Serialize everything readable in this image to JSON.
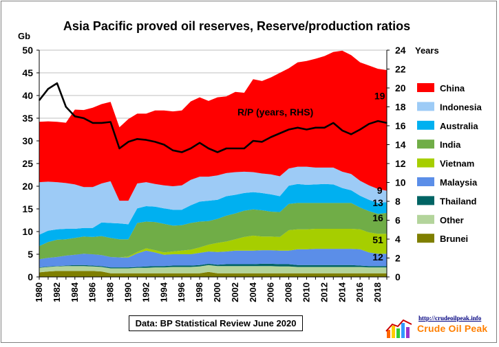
{
  "chart_data": {
    "type": "area",
    "stacked": true,
    "title": "Asia Pacific proved oil reserves, Reserve/production  ratios",
    "ylabel_left": "Gb",
    "ylabel_right": "Years",
    "ylim_left": [
      0,
      50
    ],
    "ylim_right": [
      0,
      24
    ],
    "yticks_left": [
      0,
      5,
      10,
      15,
      20,
      25,
      30,
      35,
      40,
      45,
      50
    ],
    "yticks_right": [
      0,
      2,
      4,
      6,
      8,
      10,
      12,
      14,
      16,
      18,
      20,
      22,
      24
    ],
    "x": [
      1980,
      1981,
      1982,
      1983,
      1984,
      1985,
      1986,
      1987,
      1988,
      1989,
      1990,
      1991,
      1992,
      1993,
      1994,
      1995,
      1996,
      1997,
      1998,
      1999,
      2000,
      2001,
      2002,
      2003,
      2004,
      2005,
      2006,
      2007,
      2008,
      2009,
      2010,
      2011,
      2012,
      2013,
      2014,
      2015,
      2016,
      2017,
      2018,
      2019
    ],
    "xticks": [
      1980,
      1982,
      1984,
      1986,
      1988,
      1990,
      1992,
      1994,
      1996,
      1998,
      2000,
      2002,
      2004,
      2006,
      2008,
      2010,
      2012,
      2014,
      2016,
      2018
    ],
    "grid": true,
    "legend_position": "right",
    "series": [
      {
        "name": "Brunei",
        "color": "#7f7f00",
        "values": [
          1.0,
          1.2,
          1.3,
          1.3,
          1.3,
          1.3,
          1.3,
          1.2,
          0.8,
          0.8,
          0.8,
          0.8,
          0.8,
          0.8,
          0.8,
          0.8,
          0.8,
          0.8,
          0.8,
          1.1,
          0.8,
          0.8,
          0.8,
          0.8,
          0.8,
          0.8,
          0.8,
          0.8,
          0.8,
          0.8,
          0.8,
          0.8,
          0.8,
          0.8,
          0.8,
          0.8,
          0.8,
          0.8,
          0.8,
          0.8
        ]
      },
      {
        "name": "Other",
        "color": "#b3d49b",
        "values": [
          1.0,
          1.0,
          1.0,
          1.1,
          1.1,
          1.1,
          1.0,
          1.0,
          1.1,
          1.1,
          1.1,
          1.2,
          1.2,
          1.3,
          1.3,
          1.4,
          1.4,
          1.4,
          1.5,
          1.5,
          1.6,
          1.6,
          1.6,
          1.6,
          1.6,
          1.6,
          1.6,
          1.5,
          1.5,
          1.4,
          1.4,
          1.4,
          1.4,
          1.4,
          1.4,
          1.4,
          1.4,
          1.3,
          1.3,
          1.3
        ]
      },
      {
        "name": "Thailand",
        "color": "#006464",
        "values": [
          0.1,
          0.1,
          0.1,
          0.1,
          0.2,
          0.2,
          0.2,
          0.2,
          0.2,
          0.2,
          0.2,
          0.2,
          0.3,
          0.3,
          0.3,
          0.3,
          0.3,
          0.3,
          0.3,
          0.3,
          0.3,
          0.4,
          0.4,
          0.4,
          0.4,
          0.5,
          0.5,
          0.5,
          0.5,
          0.4,
          0.4,
          0.4,
          0.4,
          0.4,
          0.4,
          0.4,
          0.3,
          0.3,
          0.3,
          0.3
        ]
      },
      {
        "name": "Malaysia",
        "color": "#5b8ee8",
        "values": [
          1.8,
          1.9,
          2.0,
          2.2,
          2.3,
          2.5,
          2.5,
          2.4,
          2.3,
          2.2,
          2.2,
          3.0,
          3.5,
          3.0,
          2.5,
          2.5,
          2.5,
          2.5,
          2.7,
          2.7,
          2.8,
          2.8,
          3.0,
          3.0,
          3.0,
          3.0,
          3.0,
          3.0,
          3.0,
          3.5,
          3.5,
          3.6,
          3.6,
          3.6,
          3.6,
          3.6,
          3.6,
          3.0,
          2.7,
          2.7
        ]
      },
      {
        "name": "Vietnam",
        "color": "#a6ce00",
        "values": [
          0.0,
          0.0,
          0.0,
          0.0,
          0.0,
          0.0,
          0.0,
          0.0,
          0.0,
          0.0,
          0.2,
          0.3,
          0.5,
          0.5,
          0.5,
          0.6,
          0.8,
          1.0,
          1.2,
          1.5,
          2.0,
          2.2,
          2.5,
          3.0,
          3.3,
          3.0,
          3.0,
          3.0,
          4.5,
          4.4,
          4.4,
          4.4,
          4.4,
          4.4,
          4.4,
          4.4,
          4.4,
          4.4,
          4.4,
          4.4
        ]
      },
      {
        "name": "India",
        "color": "#70ad47",
        "values": [
          2.9,
          3.5,
          3.8,
          3.6,
          3.7,
          3.8,
          3.8,
          4.2,
          4.2,
          4.0,
          3.8,
          6.4,
          5.9,
          6.2,
          6.3,
          5.7,
          5.6,
          5.9,
          5.7,
          5.2,
          5.3,
          5.7,
          5.7,
          5.8,
          5.8,
          5.8,
          5.5,
          5.5,
          5.8,
          5.8,
          5.8,
          5.7,
          5.7,
          5.7,
          5.7,
          5.7,
          4.8,
          4.7,
          4.4,
          4.6
        ]
      },
      {
        "name": "Australia",
        "color": "#00b0f0",
        "values": [
          2.5,
          2.5,
          2.3,
          2.3,
          2.0,
          1.9,
          2.0,
          3.0,
          3.3,
          3.5,
          3.3,
          3.2,
          3.4,
          3.4,
          3.4,
          3.5,
          3.4,
          3.9,
          4.4,
          4.5,
          4.2,
          4.3,
          4.1,
          3.9,
          3.8,
          3.8,
          3.8,
          3.5,
          4.0,
          4.2,
          4.0,
          4.1,
          4.2,
          4.1,
          3.3,
          2.8,
          2.6,
          2.5,
          2.4,
          2.4
        ]
      },
      {
        "name": "Indonesia",
        "color": "#9dcbf6",
        "values": [
          11.6,
          10.8,
          10.4,
          10.1,
          9.8,
          9.0,
          9.0,
          8.6,
          9.2,
          5.0,
          5.2,
          5.5,
          5.3,
          5.0,
          5.1,
          5.2,
          5.4,
          5.6,
          5.5,
          5.3,
          5.4,
          5.1,
          5.0,
          4.7,
          4.4,
          4.3,
          4.4,
          4.4,
          3.8,
          3.8,
          4.0,
          3.7,
          3.6,
          3.7,
          3.6,
          3.6,
          3.3,
          3.2,
          3.1,
          2.5
        ]
      },
      {
        "name": "China",
        "color": "#ff0000",
        "values": [
          13.3,
          13.3,
          13.3,
          13.3,
          16.5,
          17.0,
          17.5,
          17.5,
          17.5,
          16.2,
          18.0,
          15.4,
          15.1,
          16.2,
          16.5,
          16.5,
          16.5,
          17.3,
          17.5,
          16.7,
          17.2,
          16.9,
          17.7,
          17.4,
          20.5,
          20.4,
          21.4,
          22.8,
          22.1,
          23.0,
          23.3,
          24.0,
          24.6,
          25.5,
          26.7,
          26.2,
          26.1,
          26.4,
          26.5,
          26.6
        ]
      }
    ],
    "rp_line": {
      "name": "R/P (years, RHS)",
      "color": "#000000",
      "axis": "right",
      "values": [
        18.7,
        19.9,
        20.5,
        18.0,
        17.0,
        16.8,
        16.3,
        16.3,
        16.4,
        13.6,
        14.3,
        14.6,
        14.5,
        14.3,
        14.0,
        13.4,
        13.2,
        13.6,
        14.2,
        13.6,
        13.2,
        13.6,
        13.6,
        13.6,
        14.4,
        14.3,
        14.8,
        15.2,
        15.6,
        15.8,
        15.6,
        15.8,
        15.8,
        16.3,
        15.5,
        15.1,
        15.6,
        16.2,
        16.5,
        16.3
      ]
    },
    "annotations": [
      {
        "text": "R/P (years, RHS)",
        "x": 2006.5,
        "y": 35.6,
        "color": "#000000"
      },
      {
        "text": "19",
        "x": 2018.2,
        "y": 39.2,
        "color": "#000000"
      },
      {
        "text": "9",
        "x": 2018.2,
        "y": 18.3,
        "color": "#000000"
      },
      {
        "text": "13",
        "x": 2018.0,
        "y": 15.6,
        "color": "#000000"
      },
      {
        "text": "16",
        "x": 2018.0,
        "y": 12.3,
        "color": "#000000"
      },
      {
        "text": "51",
        "x": 2018.0,
        "y": 7.4,
        "color": "#000000"
      },
      {
        "text": "12",
        "x": 2018.0,
        "y": 3.6,
        "color": "#000000"
      }
    ]
  },
  "source_label": "Data: BP Statistical Review June 2020",
  "logo": {
    "url_text": "http://crudeoilpeak.info",
    "name_text": "Crude Oil Peak"
  }
}
